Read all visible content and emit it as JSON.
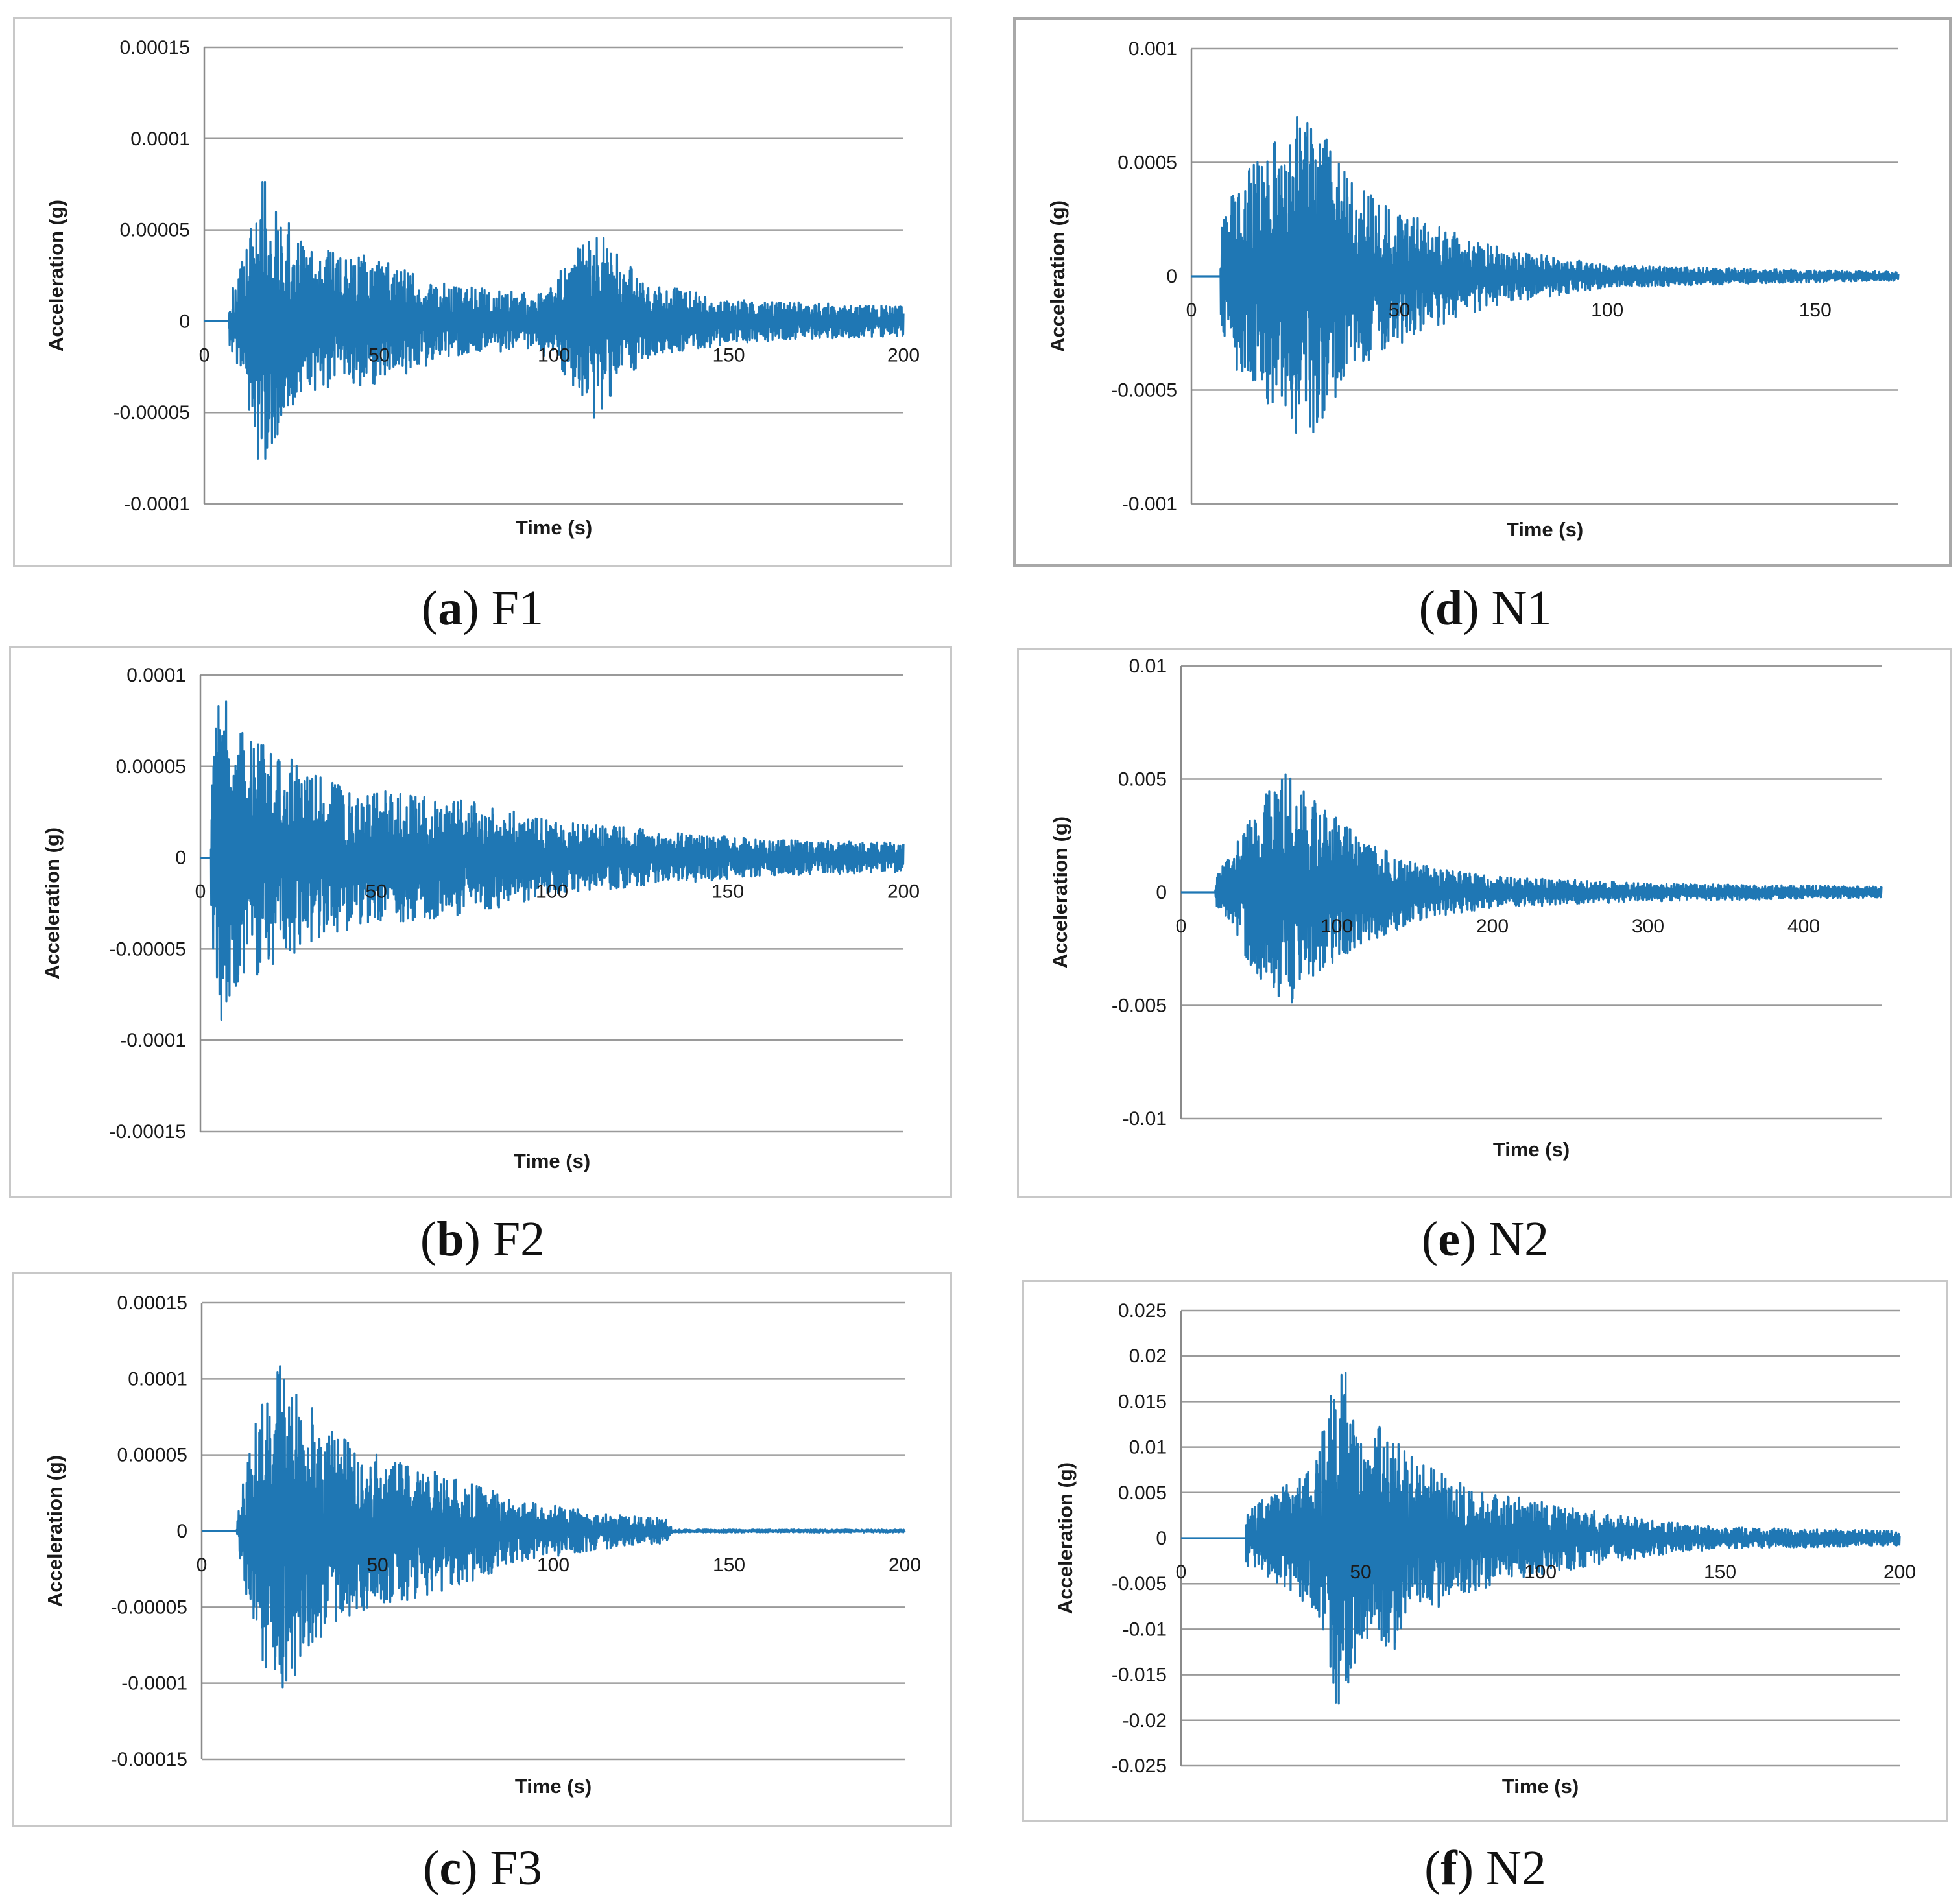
{
  "colors": {
    "series": "#1f77b4",
    "grid": "#9a9a9a"
  },
  "chart_data": [
    {
      "id": "a",
      "type": "line",
      "caption": {
        "letter": "a",
        "name": "F1"
      },
      "title": "",
      "xlabel": "Time (s)",
      "ylabel": "Acceleration (g)",
      "xlim": [
        0,
        200
      ],
      "ylim": [
        -0.0001,
        0.00015
      ],
      "xticks": [
        0,
        50,
        100,
        150,
        200
      ],
      "yticks": [
        -0.0001,
        -5e-05,
        0,
        5e-05,
        0.0001,
        0.00015
      ],
      "xtick_labels": [
        "0",
        "50",
        "100",
        "150",
        "200"
      ],
      "ytick_labels": [
        "-0.0001",
        "-0.00005",
        "0",
        "0.00005",
        "0.0001",
        "0.00015"
      ],
      "series": [
        {
          "name": "Acceleration",
          "onset": 7,
          "end": 200,
          "envelope": [
            [
              7,
              1.2e-05
            ],
            [
              12,
              4e-05
            ],
            [
              16,
              9e-05
            ],
            [
              20,
              6.5e-05
            ],
            [
              30,
              4e-05
            ],
            [
              50,
              3.5e-05
            ],
            [
              70,
              2e-05
            ],
            [
              95,
              1.5e-05
            ],
            [
              105,
              3.5e-05
            ],
            [
              112,
              5.5e-05
            ],
            [
              125,
              2.2e-05
            ],
            [
              150,
              1.2e-05
            ],
            [
              200,
              8e-06
            ]
          ]
        }
      ]
    },
    {
      "id": "b",
      "type": "line",
      "caption": {
        "letter": "b",
        "name": "F2"
      },
      "title": "",
      "xlabel": "Time (s)",
      "ylabel": "Acceleration (g)",
      "xlim": [
        0,
        200
      ],
      "ylim": [
        -0.00015,
        0.0001
      ],
      "xticks": [
        0,
        50,
        100,
        150,
        200
      ],
      "yticks": [
        -0.00015,
        -0.0001,
        -5e-05,
        0,
        5e-05,
        0.0001
      ],
      "xtick_labels": [
        "0",
        "50",
        "100",
        "150",
        "200"
      ],
      "ytick_labels": [
        "-0.00015",
        "-0.0001",
        "-0.00005",
        "0",
        "0.00005",
        "0.0001"
      ],
      "series": [
        {
          "name": "Acceleration",
          "onset": 3,
          "end": 200,
          "envelope": [
            [
              3,
              3e-05
            ],
            [
              5,
              0.0001
            ],
            [
              12,
              7e-05
            ],
            [
              20,
              6e-05
            ],
            [
              40,
              4e-05
            ],
            [
              60,
              3.5e-05
            ],
            [
              80,
              3e-05
            ],
            [
              100,
              2e-05
            ],
            [
              130,
              1.5e-05
            ],
            [
              160,
              1e-05
            ],
            [
              200,
              8e-06
            ]
          ]
        }
      ]
    },
    {
      "id": "c",
      "type": "line",
      "caption": {
        "letter": "c",
        "name": "F3"
      },
      "title": "",
      "xlabel": "Time (s)",
      "ylabel": "Acceleration (g)",
      "xlim": [
        0,
        200
      ],
      "ylim": [
        -0.00015,
        0.00015
      ],
      "xticks": [
        0,
        50,
        100,
        150,
        200
      ],
      "yticks": [
        -0.00015,
        -0.0001,
        -5e-05,
        0,
        5e-05,
        0.0001,
        0.00015
      ],
      "xtick_labels": [
        "0",
        "50",
        "100",
        "150",
        "200"
      ],
      "ytick_labels": [
        "-0.00015",
        "-0.0001",
        "-0.00005",
        "0",
        "0.00005",
        "0.0001",
        "0.00015"
      ],
      "series": [
        {
          "name": "Acceleration",
          "onset": 10,
          "end": 200,
          "envelope": [
            [
              10,
              5e-06
            ],
            [
              14,
              7e-05
            ],
            [
              22,
              0.00011
            ],
            [
              35,
              7e-05
            ],
            [
              50,
              5e-05
            ],
            [
              70,
              4e-05
            ],
            [
              90,
              2e-05
            ],
            [
              120,
              1e-05
            ],
            [
              132,
              8e-06
            ],
            [
              134,
              1e-06
            ],
            [
              200,
              1e-06
            ]
          ]
        }
      ]
    },
    {
      "id": "d",
      "type": "line",
      "caption": {
        "letter": "d",
        "name": "N1"
      },
      "title": "",
      "xlabel": "Time (s)",
      "ylabel": "Acceleration (g)",
      "xlim": [
        0,
        170
      ],
      "ylim": [
        -0.001,
        0.001
      ],
      "xticks": [
        0,
        50,
        100,
        150
      ],
      "yticks": [
        -0.001,
        -0.0005,
        0,
        0.0005,
        0.001
      ],
      "xtick_labels": [
        "0",
        "50",
        "100",
        "150"
      ],
      "ytick_labels": [
        "-0.001",
        "-0.0005",
        "0",
        "0.0005",
        "0.001"
      ],
      "series": [
        {
          "name": "Acceleration",
          "onset": 7,
          "end": 170,
          "envelope": [
            [
              7,
              0.0002
            ],
            [
              10,
              0.0004
            ],
            [
              20,
              0.0006
            ],
            [
              27,
              0.00075
            ],
            [
              40,
              0.0004
            ],
            [
              55,
              0.00025
            ],
            [
              75,
              0.00012
            ],
            [
              100,
              5e-05
            ],
            [
              140,
              3e-05
            ],
            [
              170,
              2e-05
            ]
          ]
        }
      ]
    },
    {
      "id": "e",
      "type": "line",
      "caption": {
        "letter": "e",
        "name": "N2"
      },
      "title": "",
      "xlabel": "Time (s)",
      "ylabel": "Acceleration (g)",
      "xlim": [
        0,
        450
      ],
      "ylim": [
        -0.01,
        0.01
      ],
      "xticks": [
        0,
        100,
        200,
        300,
        400
      ],
      "yticks": [
        -0.01,
        -0.005,
        0,
        0.005,
        0.01
      ],
      "xtick_labels": [
        "0",
        "100",
        "200",
        "300",
        "400"
      ],
      "ytick_labels": [
        "-0.01",
        "-0.005",
        "0",
        "0.005",
        "0.01"
      ],
      "series": [
        {
          "name": "Acceleration",
          "onset": 22,
          "end": 450,
          "envelope": [
            [
              22,
              0.0006
            ],
            [
              40,
              0.0028
            ],
            [
              55,
              0.0045
            ],
            [
              68,
              0.0054
            ],
            [
              90,
              0.0038
            ],
            [
              120,
              0.0022
            ],
            [
              160,
              0.0011
            ],
            [
              200,
              0.0007
            ],
            [
              300,
              0.0004
            ],
            [
              450,
              0.00025
            ]
          ]
        }
      ]
    },
    {
      "id": "f",
      "type": "line",
      "caption": {
        "letter": "f",
        "name": "N2"
      },
      "title": "",
      "xlabel": "Time (s)",
      "ylabel": "Acceleration (g)",
      "xlim": [
        0,
        200
      ],
      "ylim": [
        -0.025,
        0.025
      ],
      "xticks": [
        0,
        50,
        100,
        150,
        200
      ],
      "yticks": [
        -0.025,
        -0.02,
        -0.015,
        -0.01,
        -0.005,
        0,
        0.005,
        0.01,
        0.015,
        0.02,
        0.025
      ],
      "xtick_labels": [
        "0",
        "50",
        "100",
        "150",
        "200"
      ],
      "ytick_labels": [
        "-0.025",
        "-0.02",
        "-0.015",
        "-0.01",
        "-0.005",
        "0",
        "0.005",
        "0.01",
        "0.015",
        "0.02",
        "0.025"
      ],
      "series": [
        {
          "name": "Acceleration",
          "onset": 18,
          "end": 200,
          "envelope": [
            [
              18,
              0.003
            ],
            [
              30,
              0.006
            ],
            [
              38,
              0.009
            ],
            [
              44,
              0.021
            ],
            [
              50,
              0.012
            ],
            [
              58,
              0.013
            ],
            [
              65,
              0.009
            ],
            [
              80,
              0.006
            ],
            [
              100,
              0.004
            ],
            [
              130,
              0.002
            ],
            [
              150,
              0.0012
            ],
            [
              200,
              0.0008
            ]
          ]
        }
      ]
    }
  ]
}
